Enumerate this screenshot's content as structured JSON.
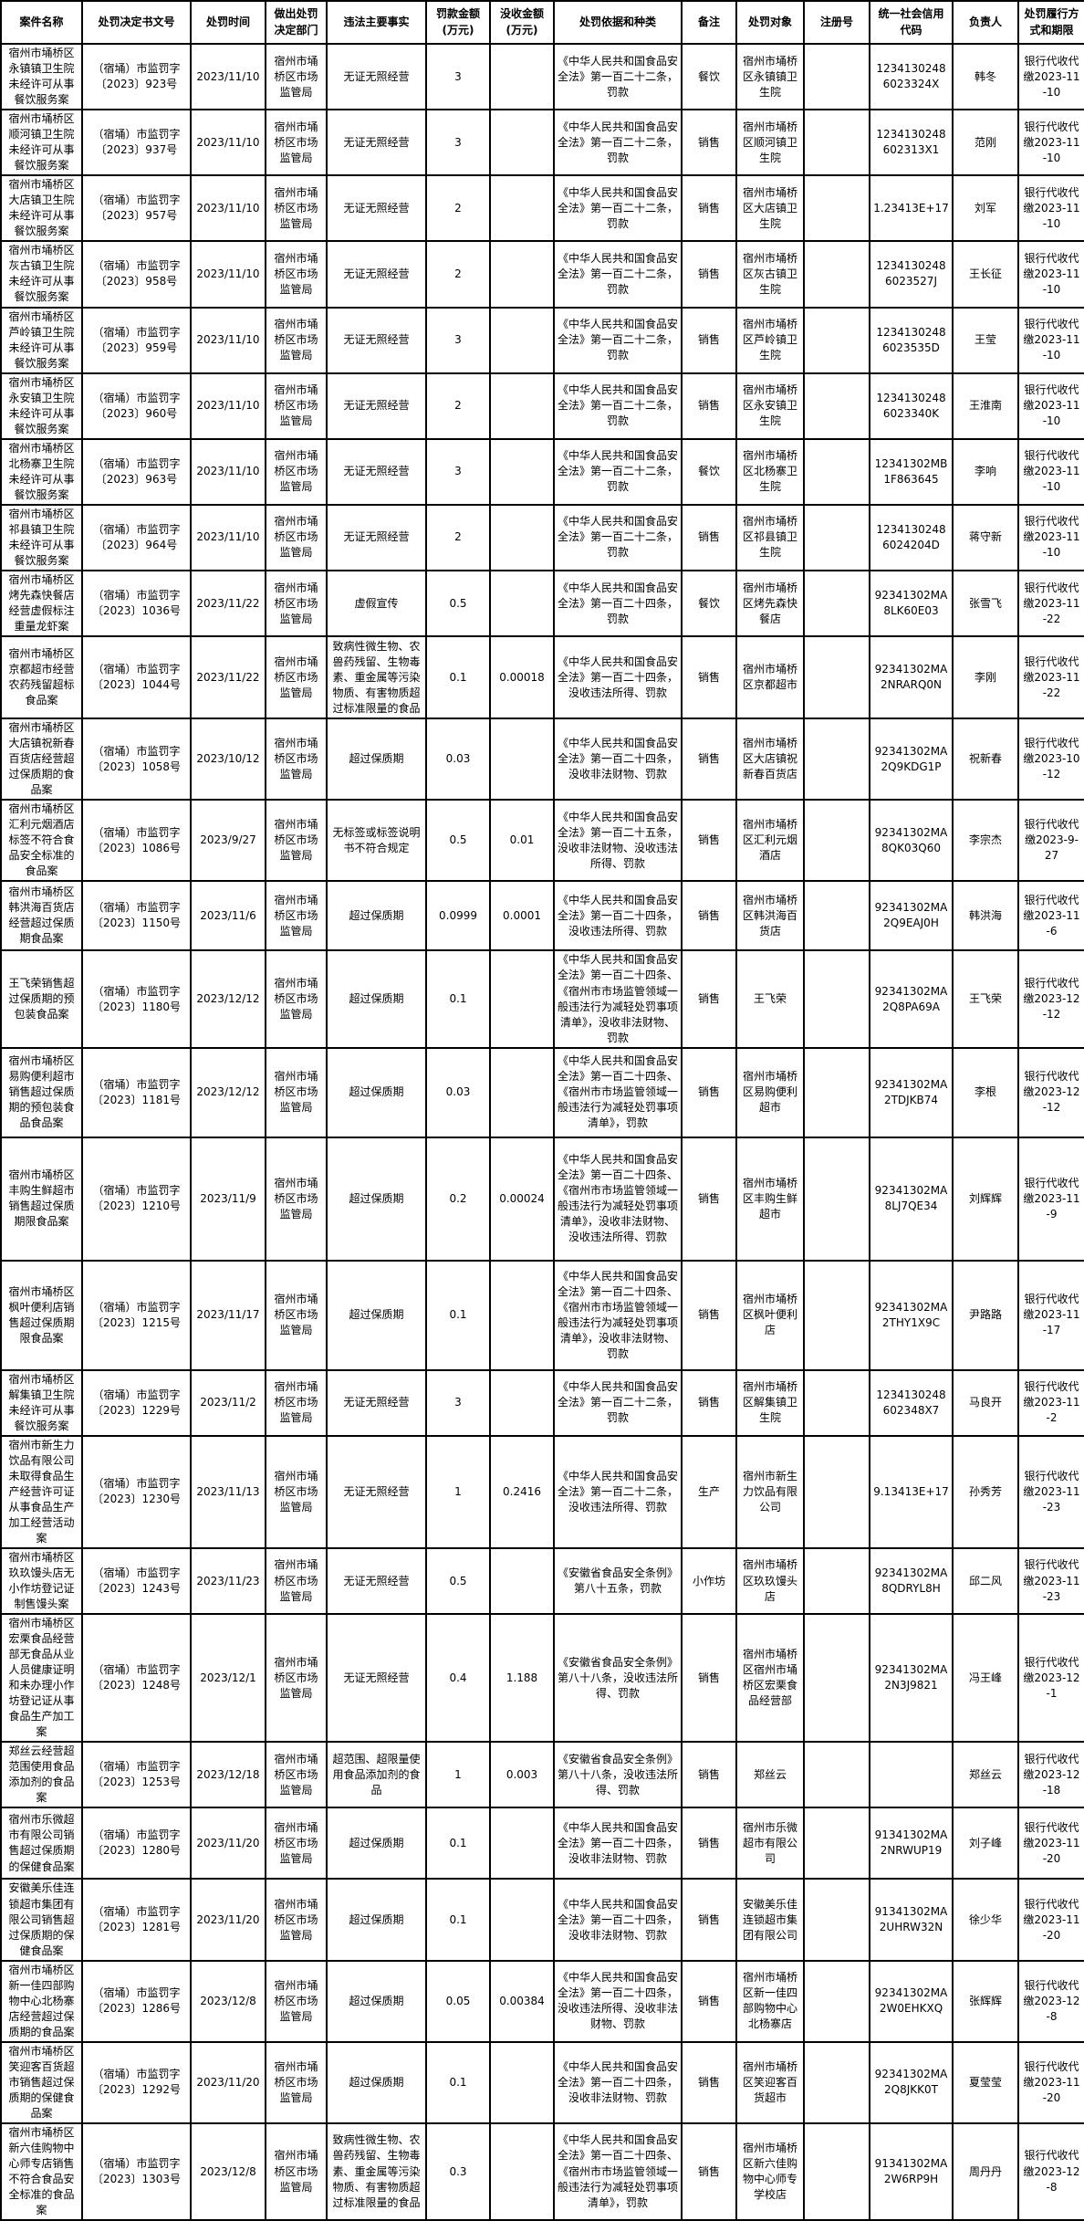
{
  "table": {
    "columns": [
      "案件名称",
      "处罚决定书文号",
      "处罚时间",
      "做出处罚决定部门",
      "违法主要事实",
      "罚款金额(万元)",
      "没收金额(万元)",
      "处罚依据和种类",
      "备注",
      "处罚对象",
      "注册号",
      "统一社会信用代码",
      "负责人",
      "处罚履行方式和期限"
    ],
    "rows": [
      [
        "宿州市埇桥区永镇镇卫生院未经许可从事餐饮服务案",
        "（宿埇）市监罚字〔2023〕923号",
        "2023/11/10",
        "宿州市埇桥区市场监管局",
        "无证无照经营",
        "3",
        "",
        "《中华人民共和国食品安全法》第一百二十二条，罚款",
        "餐饮",
        "宿州市埇桥区永镇镇卫生院",
        "",
        "12341302486023324X",
        "韩冬",
        "银行代收代缴2023-11-10"
      ],
      [
        "宿州市埇桥区顺河镇卫生院未经许可从事餐饮服务案",
        "（宿埇）市监罚字〔2023〕937号",
        "2023/11/10",
        "宿州市埇桥区市场监管局",
        "无证无照经营",
        "3",
        "",
        "《中华人民共和国食品安全法》第一百二十二条，罚款",
        "销售",
        "宿州市埇桥区顺河镇卫生院",
        "",
        "1234130248602313X1",
        "范刚",
        "银行代收代缴2023-11-10"
      ],
      [
        "宿州市埇桥区大店镇卫生院未经许可从事餐饮服务案",
        "（宿埇）市监罚字〔2023〕957号",
        "2023/11/10",
        "宿州市埇桥区市场监管局",
        "无证无照经营",
        "2",
        "",
        "《中华人民共和国食品安全法》第一百二十二条，罚款",
        "销售",
        "宿州市埇桥区大店镇卫生院",
        "",
        "1.23413E+17",
        "刘军",
        "银行代收代缴2023-11-10"
      ],
      [
        "宿州市埇桥区灰古镇卫生院未经许可从事餐饮服务案",
        "（宿埇）市监罚字〔2023〕958号",
        "2023/11/10",
        "宿州市埇桥区市场监管局",
        "无证无照经营",
        "2",
        "",
        "《中华人民共和国食品安全法》第一百二十二条，罚款",
        "销售",
        "宿州市埇桥区灰古镇卫生院",
        "",
        "12341302486023527J",
        "王长征",
        "银行代收代缴2023-11-10"
      ],
      [
        "宿州市埇桥区芦岭镇卫生院未经许可从事餐饮服务案",
        "（宿埇）市监罚字〔2023〕959号",
        "2023/11/10",
        "宿州市埇桥区市场监管局",
        "无证无照经营",
        "3",
        "",
        "《中华人民共和国食品安全法》第一百二十二条，罚款",
        "销售",
        "宿州市埇桥区芦岭镇卫生院",
        "",
        "12341302486023535D",
        "王莹",
        "银行代收代缴2023-11-10"
      ],
      [
        "宿州市埇桥区永安镇卫生院未经许可从事餐饮服务案",
        "（宿埇）市监罚字〔2023〕960号",
        "2023/11/10",
        "宿州市埇桥区市场监管局",
        "无证无照经营",
        "2",
        "",
        "《中华人民共和国食品安全法》第一百二十二条，罚款",
        "销售",
        "宿州市埇桥区永安镇卫生院",
        "",
        "12341302486023340K",
        "王淮南",
        "银行代收代缴2023-11-10"
      ],
      [
        "宿州市埇桥区北杨寨卫生院未经许可从事餐饮服务案",
        "（宿埇）市监罚字〔2023〕963号",
        "2023/11/10",
        "宿州市埇桥区市场监管局",
        "无证无照经营",
        "3",
        "",
        "《中华人民共和国食品安全法》第一百二十二条，罚款",
        "餐饮",
        "宿州市埇桥区北杨寨卫生院",
        "",
        "12341302MB1F863645",
        "李响",
        "银行代收代缴2023-11-10"
      ],
      [
        "宿州市埇桥区祁县镇卫生院未经许可从事餐饮服务案",
        "（宿埇）市监罚字〔2023〕964号",
        "2023/11/10",
        "宿州市埇桥区市场监管局",
        "无证无照经营",
        "2",
        "",
        "《中华人民共和国食品安全法》第一百二十二条，罚款",
        "销售",
        "宿州市埇桥区祁县镇卫生院",
        "",
        "12341302486024204D",
        "蒋守新",
        "银行代收代缴2023-11-10"
      ],
      [
        "宿州市埇桥区烤先森快餐店经营虚假标注重量龙虾案",
        "（宿埇）市监罚字〔2023〕1036号",
        "2023/11/22",
        "宿州市埇桥区市场监管局",
        "虚假宣传",
        "0.5",
        "",
        "《中华人民共和国食品安全法》第一百二十四条，罚款",
        "餐饮",
        "宿州市埇桥区烤先森快餐店",
        "",
        "92341302MA8LK60E03",
        "张雪飞",
        "银行代收代缴2023-11-22"
      ],
      [
        "宿州市埇桥区京都超市经营农药残留超标食品案",
        "（宿埇）市监罚字〔2023〕1044号",
        "2023/11/22",
        "宿州市埇桥区市场监管局",
        "致病性微生物、农兽药残留、生物毒素、重金属等污染物质、有害物质超过标准限量的食品",
        "0.1",
        "0.00018",
        "《中华人民共和国食品安全法》第一百二十四条，没收违法所得、罚款",
        "销售",
        "宿州市埇桥区京都超市",
        "",
        "92341302MA2NRARQ0N",
        "李刚",
        "银行代收代缴2023-11-22"
      ],
      [
        "宿州市埇桥区大店镇祝新春百货店经营超过保质期的食品案",
        "（宿埇）市监罚字〔2023〕1058号",
        "2023/10/12",
        "宿州市埇桥区市场监管局",
        "超过保质期",
        "0.03",
        "",
        "《中华人民共和国食品安全法》第一百二十四条，没收非法财物、罚款",
        "销售",
        "宿州市埇桥区大店镇祝新春百货店",
        "",
        "92341302MA2Q9KDG1P",
        "祝新春",
        "银行代收代缴2023-10-12"
      ],
      [
        "宿州市埇桥区汇利元烟酒店标签不符合食品安全标准的食品案",
        "（宿埇）市监罚字〔2023〕1086号",
        "2023/9/27",
        "宿州市埇桥区市场监管局",
        "无标签或标签说明书不符合规定",
        "0.5",
        "0.01",
        "《中华人民共和国食品安全法》第一百二十五条，没收非法财物、没收违法所得、罚款",
        "销售",
        "宿州市埇桥区汇利元烟酒店",
        "",
        "92341302MA8QK03Q60",
        "李宗杰",
        "银行代收代缴2023-9-27"
      ],
      [
        "宿州市埇桥区韩洪海百货店经营超过保质期食品案",
        "（宿埇）市监罚字〔2023〕1150号",
        "2023/11/6",
        "宿州市埇桥区市场监管局",
        "超过保质期",
        "0.0999",
        "0.0001",
        "《中华人民共和国食品安全法》第一百二十四条，没收违法所得、罚款",
        "销售",
        "宿州市埇桥区韩洪海百货店",
        "",
        "92341302MA2Q9EAJ0H",
        "韩洪海",
        "银行代收代缴2023-11-6"
      ],
      [
        "王飞荣销售超过保质期的预包装食品案",
        "（宿埇）市监罚字〔2023〕1180号",
        "2023/12/12",
        "宿州市埇桥区市场监管局",
        "超过保质期",
        "0.1",
        "",
        "《中华人民共和国食品安全法》第一百二十四条、《宿州市市场监管领域一般违法行为减轻处罚事项清单》，没收非法财物、罚款",
        "销售",
        "王飞荣",
        "",
        "92341302MA2Q8PA69A",
        "王飞荣",
        "银行代收代缴2023-12-12"
      ],
      [
        "宿州市埇桥区易购便利超市销售超过保质期的预包装食品食品案",
        "（宿埇）市监罚字〔2023〕1181号",
        "2023/12/12",
        "宿州市埇桥区市场监管局",
        "超过保质期",
        "0.03",
        "",
        "《中华人民共和国食品安全法》第一百二十四条、《宿州市市场监管领域一般违法行为减轻处罚事项清单》，罚款",
        "销售",
        "宿州市埇桥区易购便利超市",
        "",
        "92341302MA2TDJKB74",
        "李根",
        "银行代收代缴2023-12-12"
      ],
      [
        "宿州市埇桥区丰购生鲜超市销售超过保质期限食品案",
        "（宿埇）市监罚字〔2023〕1210号",
        "2023/11/9",
        "宿州市埇桥区市场监管局",
        "超过保质期",
        "0.2",
        "0.00024",
        "《中华人民共和国食品安全法》第一百二十四条、《宿州市市场监管领域一般违法行为减轻处罚事项清单》，没收非法财物、没收违法所得、罚款",
        "销售",
        "宿州市埇桥区丰购生鲜超市",
        "",
        "92341302MA8LJ7QE34",
        "刘辉辉",
        "银行代收代缴2023-11-9"
      ],
      [
        "宿州市埇桥区枫叶便利店销售超过保质期限食品案",
        "（宿埇）市监罚字〔2023〕1215号",
        "2023/11/17",
        "宿州市埇桥区市场监管局",
        "超过保质期",
        "0.1",
        "",
        "《中华人民共和国食品安全法》第一百二十四条、《宿州市市场监管领域一般违法行为减轻处罚事项清单》，没收非法财物、罚款",
        "销售",
        "宿州市埇桥区枫叶便利店",
        "",
        "92341302MA2THY1X9C",
        "尹路路",
        "银行代收代缴2023-11-17"
      ],
      [
        "宿州市埇桥区解集镇卫生院未经许可从事餐饮服务案",
        "（宿埇）市监罚字〔2023〕1229号",
        "2023/11/2",
        "宿州市埇桥区市场监管局",
        "无证无照经营",
        "3",
        "",
        "《中华人民共和国食品安全法》第一百二十二条，罚款",
        "销售",
        "宿州市埇桥区解集镇卫生院",
        "",
        "1234130248602348X7",
        "马良开",
        "银行代收代缴2023-11-2"
      ],
      [
        "宿州市新生力饮品有限公司未取得食品生产经营许可证从事食品生产加工经营活动案",
        "（宿埇）市监罚字〔2023〕1230号",
        "2023/11/13",
        "宿州市埇桥区市场监管局",
        "无证无照经营",
        "1",
        "0.2416",
        "《中华人民共和国食品安全法》第一百二十二条，没收违法所得、罚款",
        "生产",
        "宿州市新生力饮品有限公司",
        "",
        "9.13413E+17",
        "孙秀芳",
        "银行代收代缴2023-11-23"
      ],
      [
        "宿州市埇桥区玖玖馒头店无小作坊登记证制售馒头案",
        "（宿埇）市监罚字〔2023〕1243号",
        "2023/11/23",
        "宿州市埇桥区市场监管局",
        "无证无照经营",
        "0.5",
        "",
        "《安徽省食品安全条例》第八十五条，罚款",
        "小作坊",
        "宿州市埇桥区玖玖馒头店",
        "",
        "92341302MA8QDRYL8H",
        "邱二风",
        "银行代收代缴2023-11-23"
      ],
      [
        "宿州市埇桥区宏栗食品经营部无食品从业人员健康证明和未办理小作坊登记证从事食品生产加工案",
        "（宿埇）市监罚字〔2023〕1248号",
        "2023/12/1",
        "宿州市埇桥区市场监管局",
        "无证无照经营",
        "0.4",
        "1.188",
        "《安徽省食品安全条例》第八十八条，没收违法所得、罚款",
        "销售",
        "宿州市埇桥区宿州市埇桥区宏栗食品经营部",
        "",
        "92341302MA2N3J9821",
        "冯王峰",
        "银行代收代缴2023-12-1"
      ],
      [
        "郑丝云经营超范围使用食品添加剂的食品案",
        "（宿埇）市监罚字〔2023〕1253号",
        "2023/12/18",
        "宿州市埇桥区市场监管局",
        "超范围、超限量使用食品添加剂的食品",
        "1",
        "0.003",
        "《安徽省食品安全条例》第八十八条，没收违法所得、罚款",
        "销售",
        "郑丝云",
        "",
        "",
        "郑丝云",
        "银行代收代缴2023-12-18"
      ],
      [
        "宿州市乐微超市有限公司销售超过保质期的保健食品案",
        "（宿埇）市监罚字〔2023〕1280号",
        "2023/11/20",
        "宿州市埇桥区市场监管局",
        "超过保质期",
        "0.1",
        "",
        "《中华人民共和国食品安全法》第一百二十四条，没收非法财物、罚款",
        "销售",
        "宿州市乐微超市有限公司",
        "",
        "91341302MA2NRWUP19",
        "刘子峰",
        "银行代收代缴2023-11-20"
      ],
      [
        "安徽美乐佳连锁超市集团有限公司销售超过保质期的保健食品案",
        "（宿埇）市监罚字〔2023〕1281号",
        "2023/11/20",
        "宿州市埇桥区市场监管局",
        "超过保质期",
        "0.1",
        "",
        "《中华人民共和国食品安全法》第一百二十四条，没收非法财物、罚款",
        "销售",
        "安徽美乐佳连锁超市集团有限公司",
        "",
        "91341302MA2UHRW32N",
        "徐少华",
        "银行代收代缴2023-11-20"
      ],
      [
        "宿州市埇桥区新一佳四部购物中心北杨寨店经营超过保质期的食品案",
        "（宿埇）市监罚字〔2023〕1286号",
        "2023/12/8",
        "宿州市埇桥区市场监管局",
        "超过保质期",
        "0.05",
        "0.00384",
        "《中华人民共和国食品安全法》第一百二十四条，没收违法所得、没收非法财物、罚款",
        "销售",
        "宿州市埇桥区新一佳四部购物中心北杨寨店",
        "",
        "92341302MA2W0EHKXQ",
        "张辉辉",
        "银行代收代缴2023-12-8"
      ],
      [
        "宿州市埇桥区笑迎客百货超市销售超过保质期的保健食品案",
        "（宿埇）市监罚字〔2023〕1292号",
        "2023/11/20",
        "宿州市埇桥区市场监管局",
        "超过保质期",
        "0.1",
        "",
        "《中华人民共和国食品安全法》第一百二十四条，没收非法财物、罚款",
        "销售",
        "宿州市埇桥区笑迎客百货超市",
        "",
        "92341302MA2Q8JKK0T",
        "夏莹莹",
        "银行代收代缴2023-11-20"
      ],
      [
        "宿州市埇桥区新六佳购物中心师专店销售不符合食品安全标准的食品案",
        "（宿埇）市监罚字〔2023〕1303号",
        "2023/12/8",
        "宿州市埇桥区市场监管局",
        "致病性微生物、农兽药残留、生物毒素、重金属等污染物质、有害物质超过标准限量的食品",
        "0.3",
        "",
        "《中华人民共和国食品安全法》第一百二十四条、《宿州市市场监管领域一般违法行为减轻处罚事项清单》，罚款",
        "销售",
        "宿州市埇桥区新六佳购物中心师专学校店",
        "",
        "91341302MA2W6RP9H",
        "周丹丹",
        "银行代收代缴2023-12-8"
      ]
    ]
  },
  "colors": {
    "grid_border": "#000000",
    "text": "#000000",
    "background": "#ffffff"
  }
}
